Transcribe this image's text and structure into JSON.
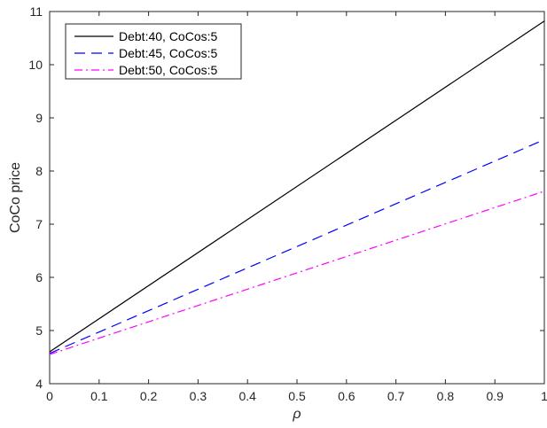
{
  "chart_data": {
    "type": "line",
    "xlabel": "ρ",
    "ylabel": "CoCo price",
    "xlim": [
      0,
      1
    ],
    "ylim": [
      4,
      11
    ],
    "xticks": [
      "0",
      "0.1",
      "0.2",
      "0.3",
      "0.4",
      "0.5",
      "0.6",
      "0.7",
      "0.8",
      "0.9",
      "1"
    ],
    "yticks": [
      "4",
      "5",
      "6",
      "7",
      "8",
      "9",
      "10",
      "11"
    ],
    "grid": false,
    "legend_position": "top-left",
    "x": [
      0,
      1
    ],
    "series": [
      {
        "name": "Debt:40, CoCos:5",
        "values": [
          4.6,
          10.82
        ],
        "color": "#000000",
        "style": "solid"
      },
      {
        "name": "Debt:45, CoCos:5",
        "values": [
          4.57,
          8.59
        ],
        "color": "#0000ff",
        "style": "dashed"
      },
      {
        "name": "Debt:50, CoCos:5",
        "values": [
          4.55,
          7.62
        ],
        "color": "#ff00ff",
        "style": "dashdot"
      }
    ]
  }
}
